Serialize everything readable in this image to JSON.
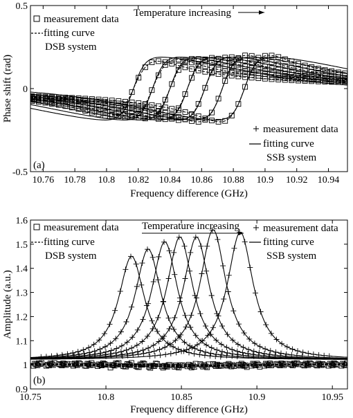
{
  "chart_data": [
    {
      "type": "line",
      "panel_label": "(a)",
      "xlabel": "Frequency difference (GHz)",
      "ylabel": "Phase shift (rad)",
      "xlim": [
        10.752,
        10.952
      ],
      "ylim": [
        -0.5,
        0.5
      ],
      "xticks": [
        10.76,
        10.78,
        10.8,
        10.82,
        10.84,
        10.86,
        10.88,
        10.9,
        10.92,
        10.94
      ],
      "xtick_labels": [
        "10.76",
        "10.78",
        "10.8",
        "10.82",
        "10.84",
        "10.86",
        "10.88",
        "10.9",
        "10.92",
        "10.94"
      ],
      "yticks": [
        -0.5,
        0,
        0.5
      ],
      "ytick_labels": [
        "-0.5",
        "0",
        "0.5"
      ],
      "annotation": "Temperature increasing",
      "legend_dsb": {
        "markers": "measurement data",
        "curve": "fitting curve",
        "system": "DSB system",
        "position": "top-left"
      },
      "legend_ssb": {
        "markers": "measurement data",
        "curve": "fitting curve",
        "system": "SSB system",
        "position": "bottom-right"
      },
      "resonance_centers": [
        10.817,
        10.829,
        10.84,
        10.851,
        10.862,
        10.873,
        10.887
      ],
      "dsb_series": {
        "marker": "square",
        "style": "dashed",
        "peak_phase": [
          0.33,
          0.35,
          0.36,
          0.37,
          0.38,
          0.4,
          0.39
        ],
        "trough_phase": [
          -0.33,
          -0.35,
          -0.36,
          -0.37,
          -0.38,
          -0.4,
          -0.41
        ],
        "half_width_ghz": 0.0155
      },
      "ssb_series": {
        "marker": "plus",
        "style": "solid",
        "peak_phase": [
          0.2,
          0.2,
          0.2,
          0.2,
          0.2,
          0.2,
          0.2
        ],
        "trough_phase": [
          -0.2,
          -0.2,
          -0.2,
          -0.2,
          -0.2,
          -0.2,
          -0.2
        ],
        "half_width_ghz": 0.0075
      }
    },
    {
      "type": "line",
      "panel_label": "(b)",
      "xlabel": "Frequency difference (GHz)",
      "ylabel": "Amplitude (a.u.)",
      "xlim": [
        10.75,
        10.96
      ],
      "ylim": [
        0.9,
        1.6
      ],
      "xticks": [
        10.75,
        10.8,
        10.85,
        10.9,
        10.95
      ],
      "xtick_labels": [
        "10.75",
        "10.8",
        "10.85",
        "10.9",
        "10.95"
      ],
      "yticks": [
        0.9,
        1,
        1.1,
        1.2,
        1.3,
        1.4,
        1.5,
        1.6
      ],
      "ytick_labels": [
        "0.9",
        "1",
        "1.1",
        "1.2",
        "1.3",
        "1.4",
        "1.5",
        "1.6"
      ],
      "annotation": "Temperature increasing",
      "legend_dsb": {
        "markers": "measurement data",
        "curve": "fitting curve",
        "system": "DSB system",
        "position": "top-left"
      },
      "legend_ssb": {
        "markers": "measurement data",
        "curve": "fitting curve",
        "system": "SSB system",
        "position": "top-right"
      },
      "ssb_series": {
        "marker": "plus",
        "style": "solid",
        "centers": [
          10.817,
          10.828,
          10.839,
          10.849,
          10.86,
          10.871,
          10.889
        ],
        "peaks": [
          1.45,
          1.48,
          1.51,
          1.53,
          1.53,
          1.56,
          1.55
        ],
        "baseline": 1.0,
        "half_width_ghz": 0.0105
      },
      "dsb_series": {
        "marker": "square",
        "style": "dashed",
        "baseline": 1.0,
        "dip_depth": 0.012
      }
    }
  ]
}
